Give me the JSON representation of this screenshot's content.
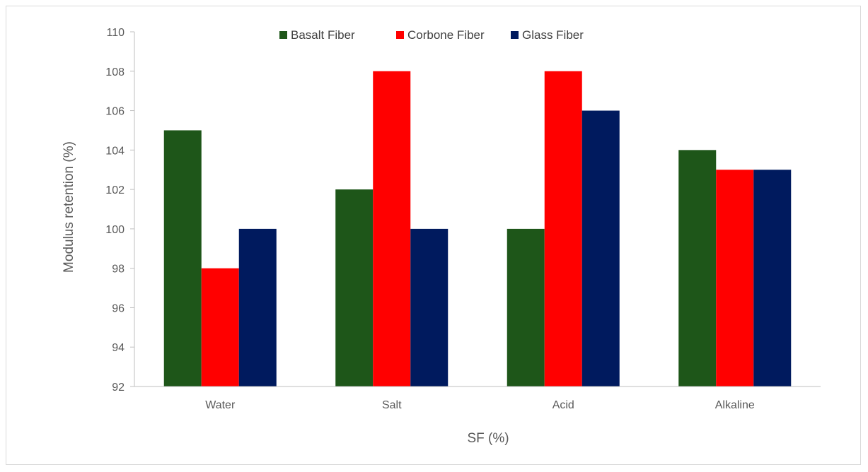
{
  "chart_data": {
    "type": "bar",
    "title": "",
    "xlabel": "SF (%)",
    "ylabel": "Modulus retention  (%)",
    "ylim": [
      92,
      110
    ],
    "yticks": [
      "92",
      "94",
      "96",
      "98",
      "100",
      "102",
      "104",
      "106",
      "108",
      "110"
    ],
    "grid": false,
    "legend_position": "top",
    "categories": [
      "Water",
      "Salt",
      "Acid",
      "Alkaline"
    ],
    "series": [
      {
        "name": "Basalt Fiber",
        "color": "#1e5619",
        "values": [
          105,
          102,
          100,
          104
        ]
      },
      {
        "name": "Corbone Fiber",
        "color": "#ff0000",
        "values": [
          98,
          108,
          108,
          103
        ]
      },
      {
        "name": "Glass Fiber",
        "color": "#001a5e",
        "values": [
          100,
          100,
          106,
          103
        ]
      }
    ]
  }
}
